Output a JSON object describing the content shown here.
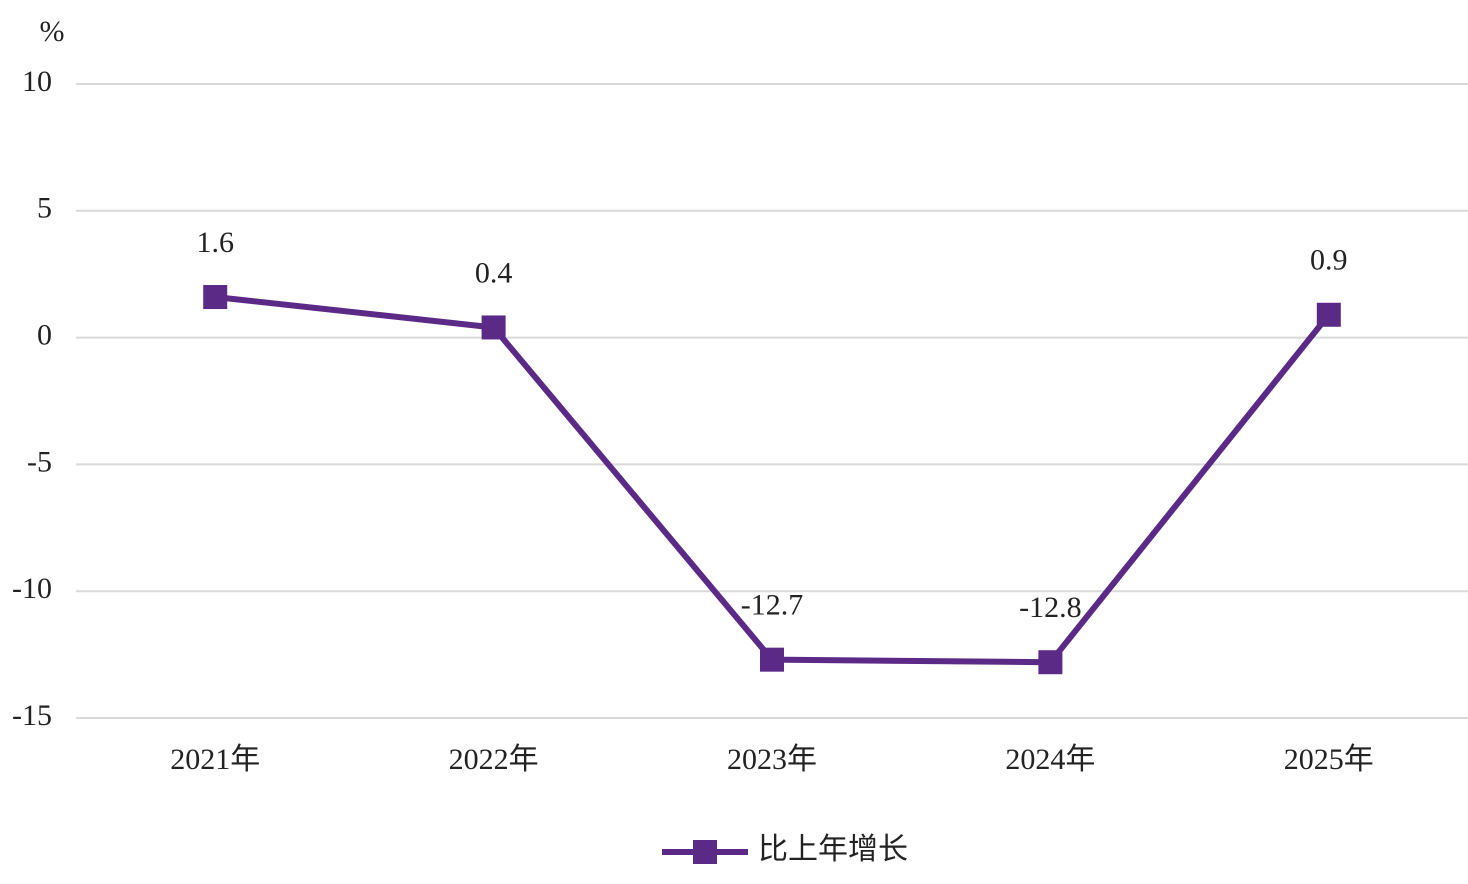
{
  "chart_data": {
    "type": "line",
    "y_label": "%",
    "categories": [
      "2021年",
      "2022年",
      "2023年",
      "2024年",
      "2025年"
    ],
    "series": [
      {
        "name": "比上年增长",
        "color": "#5b2a86",
        "values": [
          1.6,
          0.4,
          -12.7,
          -12.8,
          0.9
        ]
      }
    ],
    "ylim": [
      -15,
      10
    ],
    "yticks": [
      10,
      5,
      0,
      -5,
      -10,
      -15
    ],
    "grid": true,
    "legend": "bottom"
  }
}
